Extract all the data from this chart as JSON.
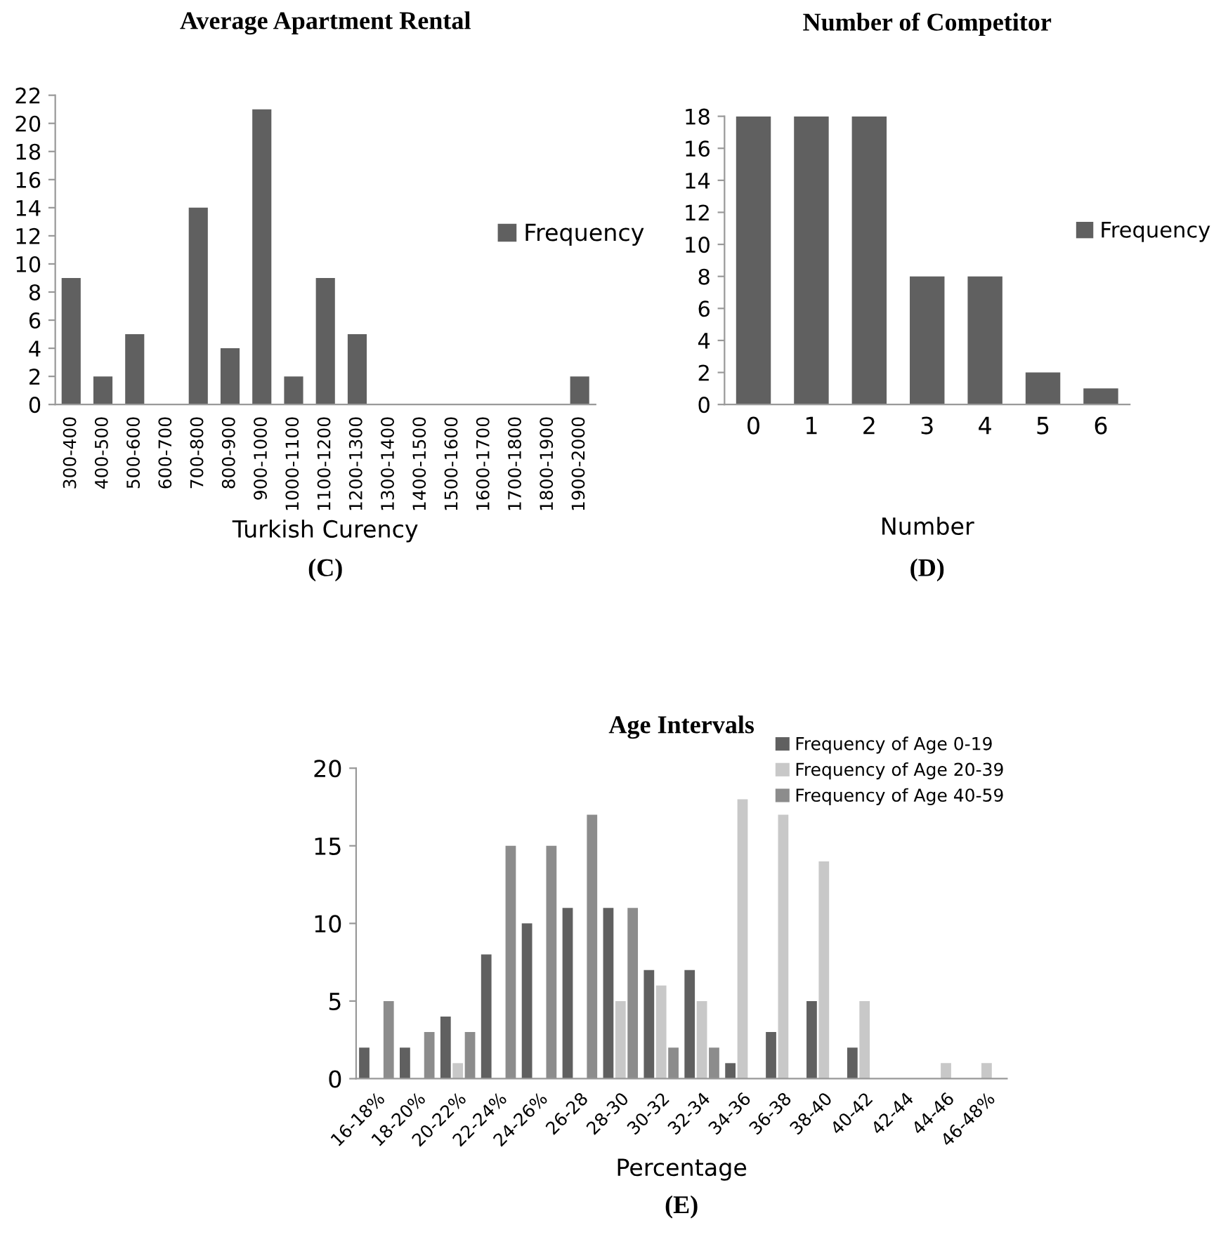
{
  "chart_data": [
    {
      "type": "bar",
      "title": "Average Apartment Rental",
      "xlabel": "Turkish Curency",
      "annotations": [
        "(C)"
      ],
      "categories": [
        "300-400",
        "400-500",
        "500-600",
        "600-700",
        "700-800",
        "800-900",
        "900-1000",
        "1000-1100",
        "1100-1200",
        "1200-1300",
        "1300-1400",
        "1400-1500",
        "1500-1600",
        "1600-1700",
        "1700-1800",
        "1800-1900",
        "1900-2000"
      ],
      "series": [
        {
          "name": "Frequency",
          "color": "#606060",
          "values": [
            9,
            2,
            5,
            0,
            14,
            4,
            21,
            2,
            9,
            5,
            0,
            0,
            0,
            0,
            0,
            0,
            2
          ]
        }
      ],
      "ylim": [
        0,
        22
      ],
      "yticks": [
        0,
        2,
        4,
        6,
        8,
        10,
        12,
        14,
        16,
        18,
        20,
        22
      ],
      "grid": false,
      "legend": "right"
    },
    {
      "type": "bar",
      "title": "Number of Competitor",
      "xlabel": "Number",
      "annotations": [
        "(D)"
      ],
      "categories": [
        "0",
        "1",
        "2",
        "3",
        "4",
        "5",
        "6"
      ],
      "series": [
        {
          "name": "Frequency",
          "color": "#606060",
          "values": [
            18,
            18,
            18,
            8,
            8,
            2,
            1
          ]
        }
      ],
      "ylim": [
        0,
        18
      ],
      "yticks": [
        0,
        2,
        4,
        6,
        8,
        10,
        12,
        14,
        16,
        18
      ],
      "grid": false,
      "legend": "right"
    },
    {
      "type": "bar",
      "title": "Age Intervals",
      "xlabel": "Percentage",
      "annotations": [
        "(E)"
      ],
      "categories": [
        "16-18%",
        "18-20%",
        "20-22%",
        "22-24%",
        "24-26%",
        "26-28",
        "28-30",
        "30-32",
        "32-34",
        "34-36",
        "36-38",
        "38-40",
        "40-42",
        "42-44",
        "44-46",
        "46-48%"
      ],
      "series": [
        {
          "name": "Frequency of Age 0-19",
          "color": "#606060",
          "values": [
            2,
            2,
            4,
            8,
            10,
            11,
            11,
            7,
            7,
            1,
            3,
            5,
            2,
            0,
            0,
            0
          ]
        },
        {
          "name": "Frequency of Age 20-39",
          "color": "#c8c8c8",
          "values": [
            0,
            0,
            1,
            0,
            0,
            0,
            5,
            6,
            5,
            18,
            17,
            14,
            5,
            0,
            1,
            1
          ]
        },
        {
          "name": "Frequency of Age 40-59",
          "color": "#8c8c8c",
          "values": [
            5,
            3,
            3,
            15,
            15,
            17,
            11,
            2,
            2,
            0,
            0,
            0,
            0,
            0,
            0,
            0
          ]
        }
      ],
      "ylim": [
        0,
        20
      ],
      "yticks": [
        0,
        5,
        10,
        15,
        20
      ],
      "grid": false,
      "legend": "top right"
    }
  ]
}
